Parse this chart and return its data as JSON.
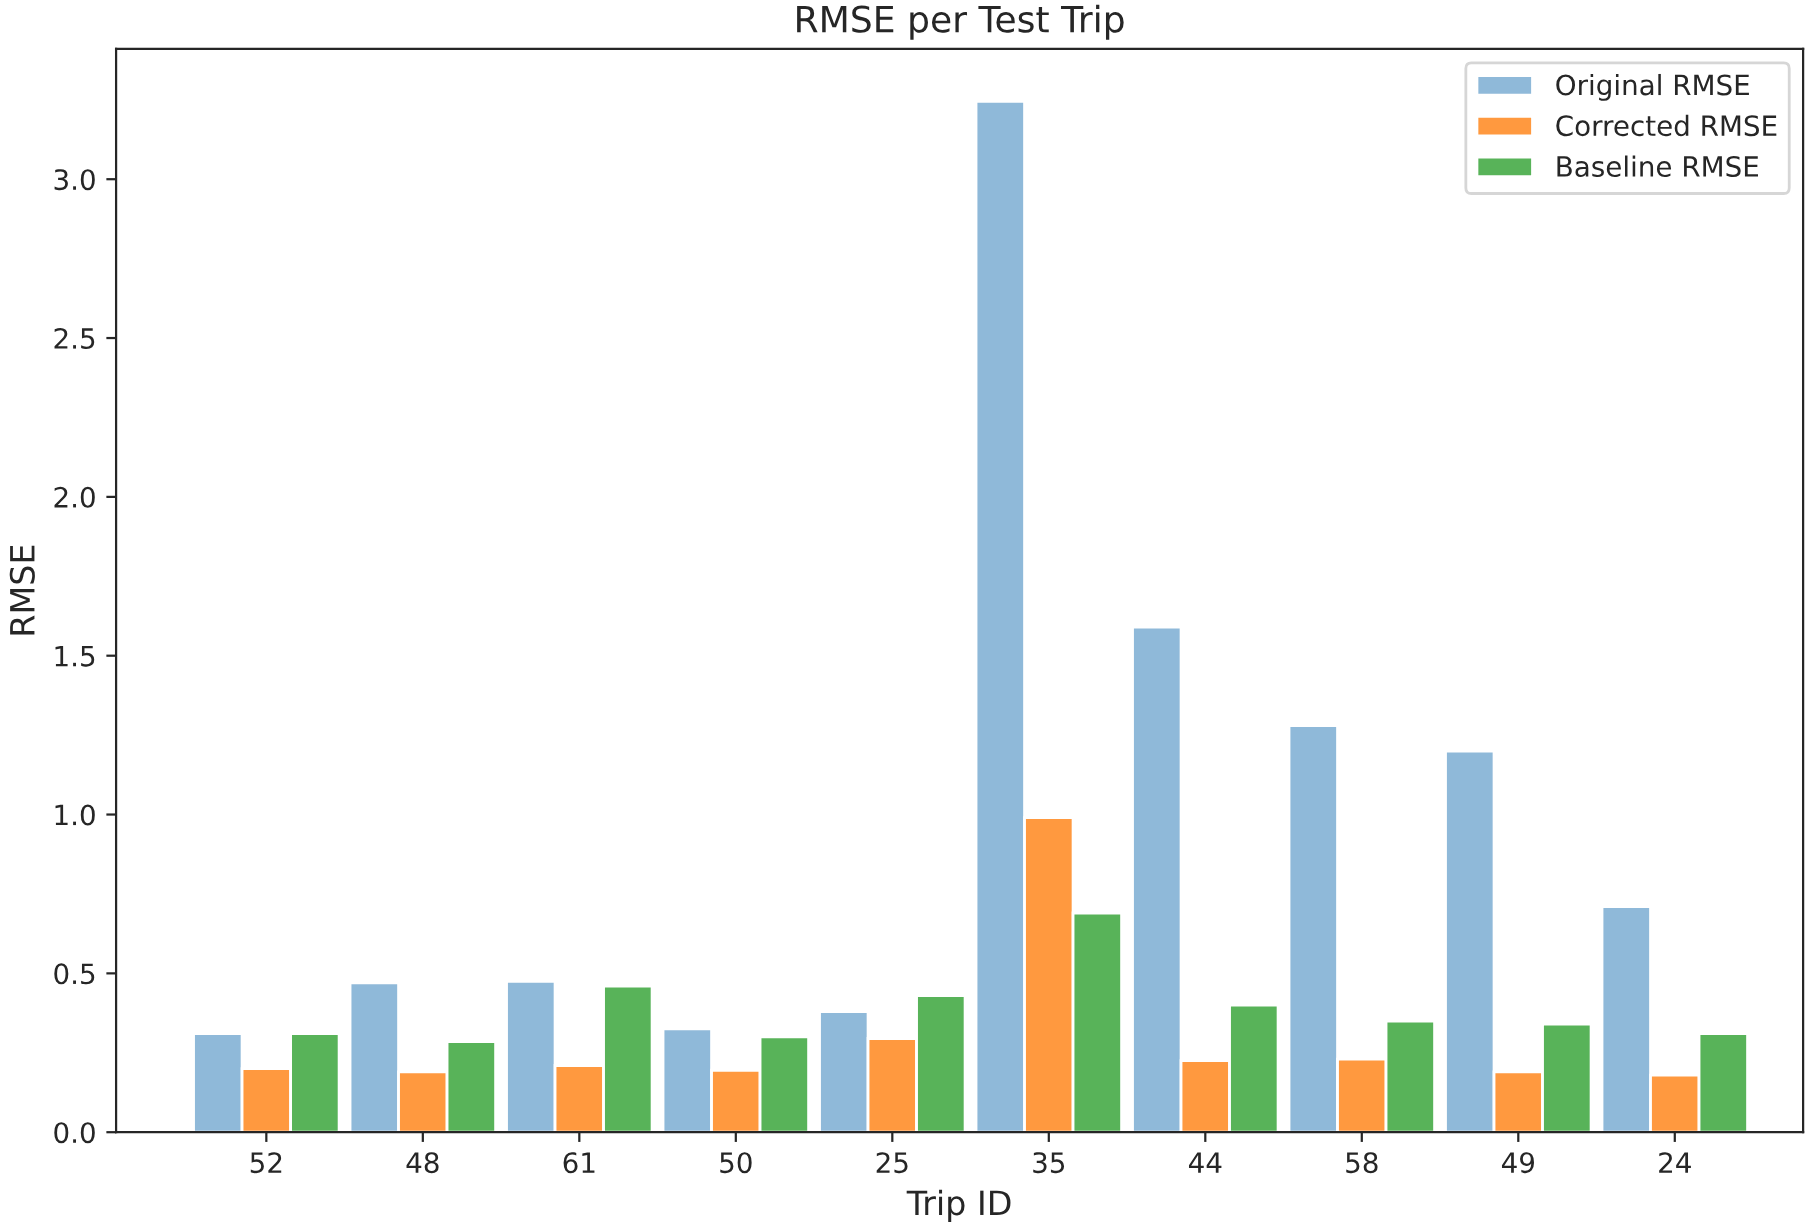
{
  "chart_data": {
    "type": "bar",
    "title": "RMSE per Test Trip",
    "xlabel": "Trip ID",
    "ylabel": "RMSE",
    "categories": [
      "52",
      "48",
      "61",
      "50",
      "25",
      "35",
      "44",
      "58",
      "49",
      "24"
    ],
    "series": [
      {
        "name": "Original RMSE",
        "color": "#8fb9d9",
        "values": [
          0.31,
          0.47,
          0.475,
          0.325,
          0.38,
          3.245,
          1.59,
          1.28,
          1.2,
          0.71
        ]
      },
      {
        "name": "Corrected RMSE",
        "color": "#ff993f",
        "values": [
          0.2,
          0.19,
          0.21,
          0.195,
          0.295,
          0.99,
          0.225,
          0.23,
          0.19,
          0.18
        ]
      },
      {
        "name": "Baseline RMSE",
        "color": "#58b359",
        "values": [
          0.31,
          0.285,
          0.46,
          0.3,
          0.43,
          0.69,
          0.4,
          0.35,
          0.34,
          0.31
        ]
      }
    ],
    "ylim": [
      0,
      3.41
    ],
    "yticks": [
      {
        "value": 0,
        "label": "0.0"
      },
      0.5,
      {
        "value": 1,
        "label": "1.0"
      },
      1.5,
      {
        "value": 2,
        "label": "2.0"
      },
      2.5,
      {
        "value": 3,
        "label": "3.0"
      }
    ],
    "legend": "top right",
    "grid": false
  }
}
